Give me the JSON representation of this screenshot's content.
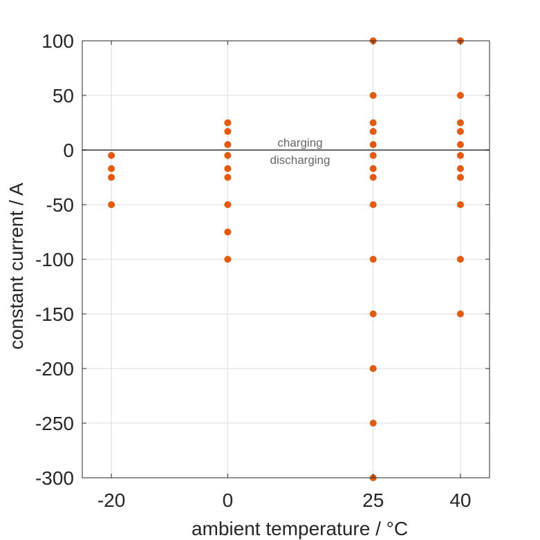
{
  "chart_data": {
    "type": "scatter",
    "xlabel": "ambient temperature / °C",
    "ylabel": "constant current / A",
    "x_ticks": [
      "-20",
      "0",
      "25",
      "40"
    ],
    "y_ticks": [
      "100",
      "50",
      "0",
      "-50",
      "-100",
      "-150",
      "-200",
      "-250",
      "-300"
    ],
    "xlim": [
      -25,
      45
    ],
    "ylim": [
      -300,
      100
    ],
    "x_positions": [
      -20,
      0,
      25,
      40
    ],
    "grid": true,
    "point_color": "#e8590c",
    "zero_line_color": "#666666",
    "annotations": {
      "above": "charging",
      "below": "discharging"
    },
    "points": [
      {
        "x": -20,
        "y": -5
      },
      {
        "x": -20,
        "y": -17
      },
      {
        "x": -20,
        "y": -25
      },
      {
        "x": -20,
        "y": -50
      },
      {
        "x": 0,
        "y": 25
      },
      {
        "x": 0,
        "y": 17
      },
      {
        "x": 0,
        "y": 5
      },
      {
        "x": 0,
        "y": -5
      },
      {
        "x": 0,
        "y": -17
      },
      {
        "x": 0,
        "y": -25
      },
      {
        "x": 0,
        "y": -50
      },
      {
        "x": 0,
        "y": -75
      },
      {
        "x": 0,
        "y": -100
      },
      {
        "x": 25,
        "y": 100
      },
      {
        "x": 25,
        "y": 50
      },
      {
        "x": 25,
        "y": 25
      },
      {
        "x": 25,
        "y": 17
      },
      {
        "x": 25,
        "y": 5
      },
      {
        "x": 25,
        "y": -5
      },
      {
        "x": 25,
        "y": -17
      },
      {
        "x": 25,
        "y": -25
      },
      {
        "x": 25,
        "y": -50
      },
      {
        "x": 25,
        "y": -100
      },
      {
        "x": 25,
        "y": -150
      },
      {
        "x": 25,
        "y": -200
      },
      {
        "x": 25,
        "y": -250
      },
      {
        "x": 25,
        "y": -300
      },
      {
        "x": 40,
        "y": 100
      },
      {
        "x": 40,
        "y": 50
      },
      {
        "x": 40,
        "y": 25
      },
      {
        "x": 40,
        "y": 17
      },
      {
        "x": 40,
        "y": 5
      },
      {
        "x": 40,
        "y": -5
      },
      {
        "x": 40,
        "y": -17
      },
      {
        "x": 40,
        "y": -25
      },
      {
        "x": 40,
        "y": -50
      },
      {
        "x": 40,
        "y": -100
      },
      {
        "x": 40,
        "y": -150
      }
    ]
  }
}
